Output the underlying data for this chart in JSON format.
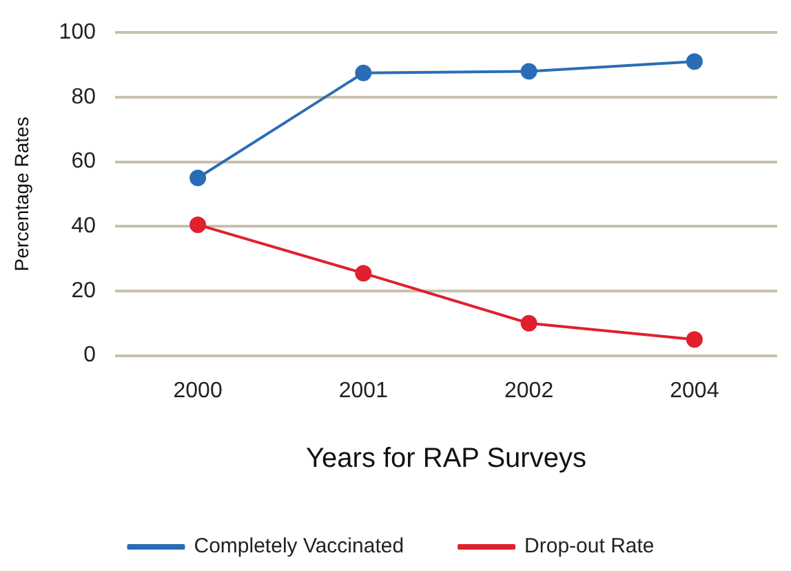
{
  "chart_data": {
    "type": "line",
    "xlabel": "Years for RAP Surveys",
    "ylabel": "Percentage Rates",
    "categories": [
      "2000",
      "2001",
      "2002",
      "2004"
    ],
    "series": [
      {
        "name": "Completely Vaccinated",
        "color": "#2a6db5",
        "values": [
          55,
          87.5,
          88,
          91
        ]
      },
      {
        "name": "Drop-out Rate",
        "color": "#e0202e",
        "values": [
          40.5,
          25.5,
          10,
          5
        ]
      }
    ],
    "ylim": [
      0,
      100
    ],
    "yticks": [
      0,
      20,
      40,
      60,
      80,
      100
    ],
    "grid": "y",
    "legend": "bottom",
    "marker": "circle",
    "line_style": "solid"
  }
}
